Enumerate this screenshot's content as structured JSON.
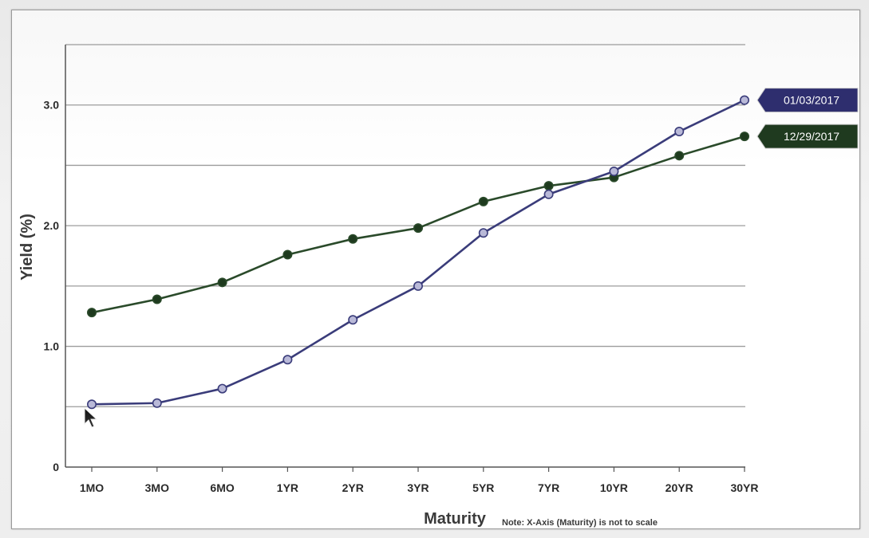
{
  "chart_data": {
    "type": "line",
    "categories": [
      "1MO",
      "3MO",
      "6MO",
      "1YR",
      "2YR",
      "3YR",
      "5YR",
      "7YR",
      "10YR",
      "20YR",
      "30YR"
    ],
    "xlabel": "Maturity",
    "ylabel": "Yield (%)",
    "note": "Note: X-Axis (Maturity) is not to scale",
    "ylim": [
      0,
      3.5
    ],
    "yticks": [
      0,
      0.5,
      1.0,
      1.5,
      2.0,
      2.5,
      3.0,
      3.5
    ],
    "ytick_labels": [
      "0",
      "",
      "1.0",
      "",
      "2.0",
      "",
      "3.0",
      ""
    ],
    "grid": true,
    "series": [
      {
        "name": "01/03/2017",
        "color": "#3a3c7a",
        "marker_fill": "#b9b9d8",
        "values": [
          0.52,
          0.53,
          0.65,
          0.89,
          1.22,
          1.5,
          1.94,
          2.26,
          2.45,
          2.78,
          3.04
        ]
      },
      {
        "name": "12/29/2017",
        "color": "#2a4a2a",
        "marker_fill": "#1e3a1e",
        "values": [
          1.28,
          1.39,
          1.53,
          1.76,
          1.89,
          1.98,
          2.2,
          2.33,
          2.4,
          2.58,
          2.74
        ]
      }
    ]
  }
}
